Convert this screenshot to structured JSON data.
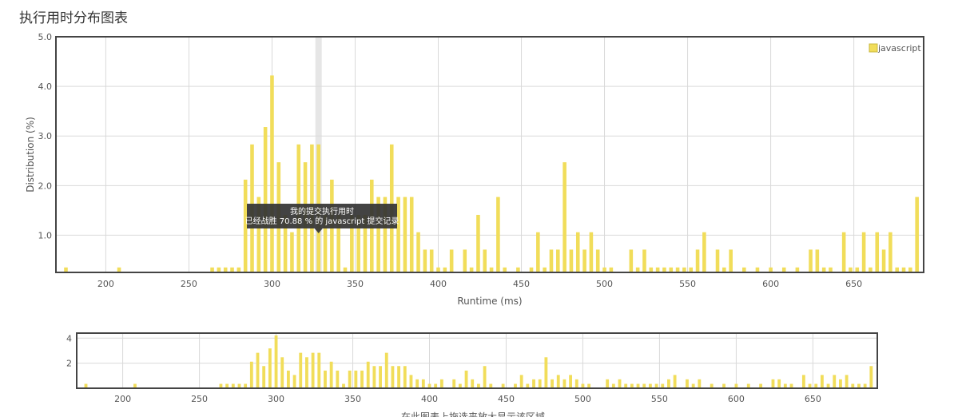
{
  "page": {
    "title": "执行用时分布图表"
  },
  "chart_data": {
    "type": "bar",
    "ylabel": "Distribution (%)",
    "xlabel": "Runtime (ms)",
    "xlim": [
      170,
      692
    ],
    "ylim": [
      0.25,
      5.0
    ],
    "yticks": [
      1.0,
      2.0,
      3.0,
      4.0,
      5.0
    ],
    "xticks": [
      200,
      250,
      300,
      350,
      400,
      450,
      500,
      550,
      600,
      650
    ],
    "grid": true,
    "legend": {
      "position": "top-right",
      "entries": [
        "javascript"
      ]
    },
    "series": [
      {
        "name": "javascript",
        "color": "#f1dd5a",
        "x": [
          176,
          208,
          264,
          268,
          272,
          276,
          280,
          284,
          288,
          292,
          296,
          300,
          304,
          308,
          312,
          316,
          320,
          324,
          328,
          332,
          336,
          340,
          344,
          348,
          352,
          356,
          360,
          364,
          368,
          372,
          376,
          380,
          384,
          388,
          392,
          396,
          400,
          404,
          408,
          416,
          420,
          424,
          428,
          432,
          436,
          440,
          448,
          456,
          460,
          464,
          468,
          472,
          476,
          480,
          484,
          488,
          492,
          496,
          500,
          504,
          516,
          520,
          524,
          528,
          532,
          536,
          540,
          544,
          548,
          552,
          556,
          560,
          568,
          572,
          576,
          584,
          592,
          600,
          608,
          616,
          624,
          628,
          632,
          636,
          644,
          648,
          652,
          656,
          660,
          664,
          668,
          672,
          676,
          680,
          684,
          688
        ],
        "values": [
          0.35,
          0.35,
          0.35,
          0.35,
          0.35,
          0.35,
          0.35,
          2.12,
          2.83,
          1.77,
          3.18,
          4.22,
          2.47,
          1.41,
          1.06,
          2.83,
          2.47,
          2.83,
          2.83,
          1.41,
          2.12,
          1.41,
          0.35,
          1.41,
          1.41,
          1.41,
          2.12,
          1.77,
          1.77,
          2.83,
          1.77,
          1.77,
          1.77,
          1.06,
          0.71,
          0.71,
          0.35,
          0.35,
          0.71,
          0.71,
          0.35,
          1.41,
          0.71,
          0.35,
          1.77,
          0.35,
          0.35,
          0.35,
          1.06,
          0.35,
          0.71,
          0.71,
          2.47,
          0.71,
          1.06,
          0.71,
          1.06,
          0.71,
          0.35,
          0.35,
          0.71,
          0.35,
          0.71,
          0.35,
          0.35,
          0.35,
          0.35,
          0.35,
          0.35,
          0.35,
          0.71,
          1.06,
          0.71,
          0.35,
          0.71,
          0.35,
          0.35,
          0.35,
          0.35,
          0.35,
          0.71,
          0.71,
          0.35,
          0.35,
          1.06,
          0.35,
          0.35,
          1.06,
          0.35,
          1.06,
          0.71,
          1.06,
          0.35,
          0.35,
          0.35,
          1.77
        ]
      }
    ],
    "highlight_x": 328,
    "tooltip": {
      "title": "我的提交执行用时",
      "body": "已经战胜 70.88 % 的 javascript 提交记录"
    },
    "navigator": {
      "yticks": [
        2,
        4
      ],
      "ylim": [
        0,
        4.4
      ],
      "caption": "在此图表上拖选来放大显示该区域"
    }
  }
}
